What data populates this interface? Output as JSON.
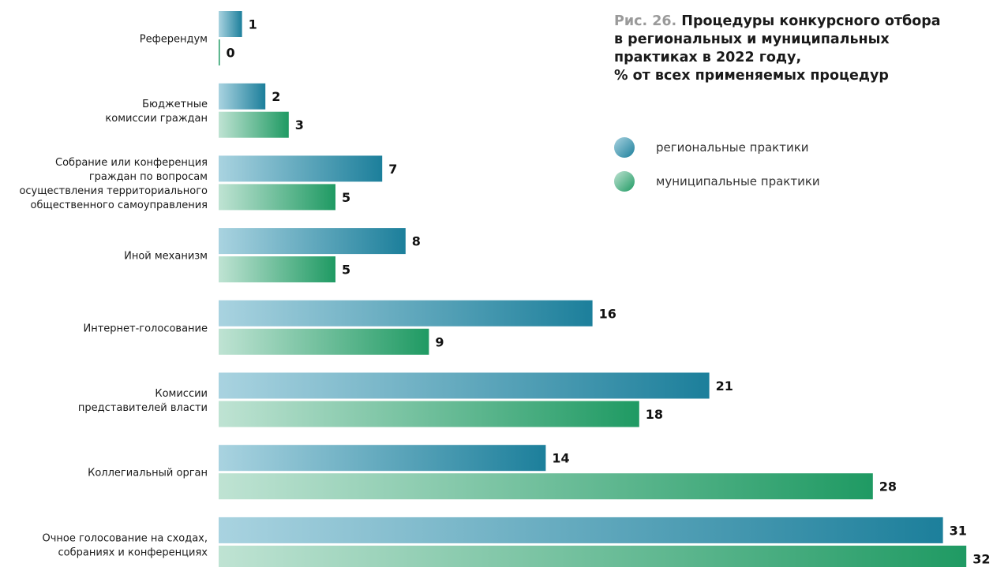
{
  "title": {
    "prefix": "Рис. 26.",
    "lines": [
      "Процедуры конкурсного отбора",
      "в региональных и муниципальных",
      "практиках в 2022 году,",
      "% от всех применяемых процедур"
    ]
  },
  "colors": {
    "regional_start": "#a9d3e0",
    "regional_end": "#1c7f9b",
    "municipal_start": "#bfe3d3",
    "municipal_end": "#1f9a63"
  },
  "chart_data": {
    "type": "bar",
    "orientation": "horizontal",
    "categories": [
      [
        "Референдум"
      ],
      [
        "Бюджетные",
        "комиссии граждан"
      ],
      [
        "Собрание или конференция",
        "граждан по вопросам",
        "осуществления территориального",
        "общественного самоуправления"
      ],
      [
        "Иной механизм"
      ],
      [
        "Интернет-голосование"
      ],
      [
        "Комиссии",
        "представителей власти"
      ],
      [
        "Коллегиальный орган"
      ],
      [
        "Очное голосование на сходах,",
        "собраниях и конференциях"
      ]
    ],
    "series": [
      {
        "name": "региональные практики",
        "values": [
          1,
          2,
          7,
          8,
          16,
          21,
          14,
          31
        ]
      },
      {
        "name": "муниципальные практики",
        "values": [
          0,
          3,
          5,
          5,
          9,
          18,
          28,
          32
        ]
      }
    ],
    "xlim": [
      0,
      32
    ],
    "grid": false,
    "legend_position": "right"
  }
}
